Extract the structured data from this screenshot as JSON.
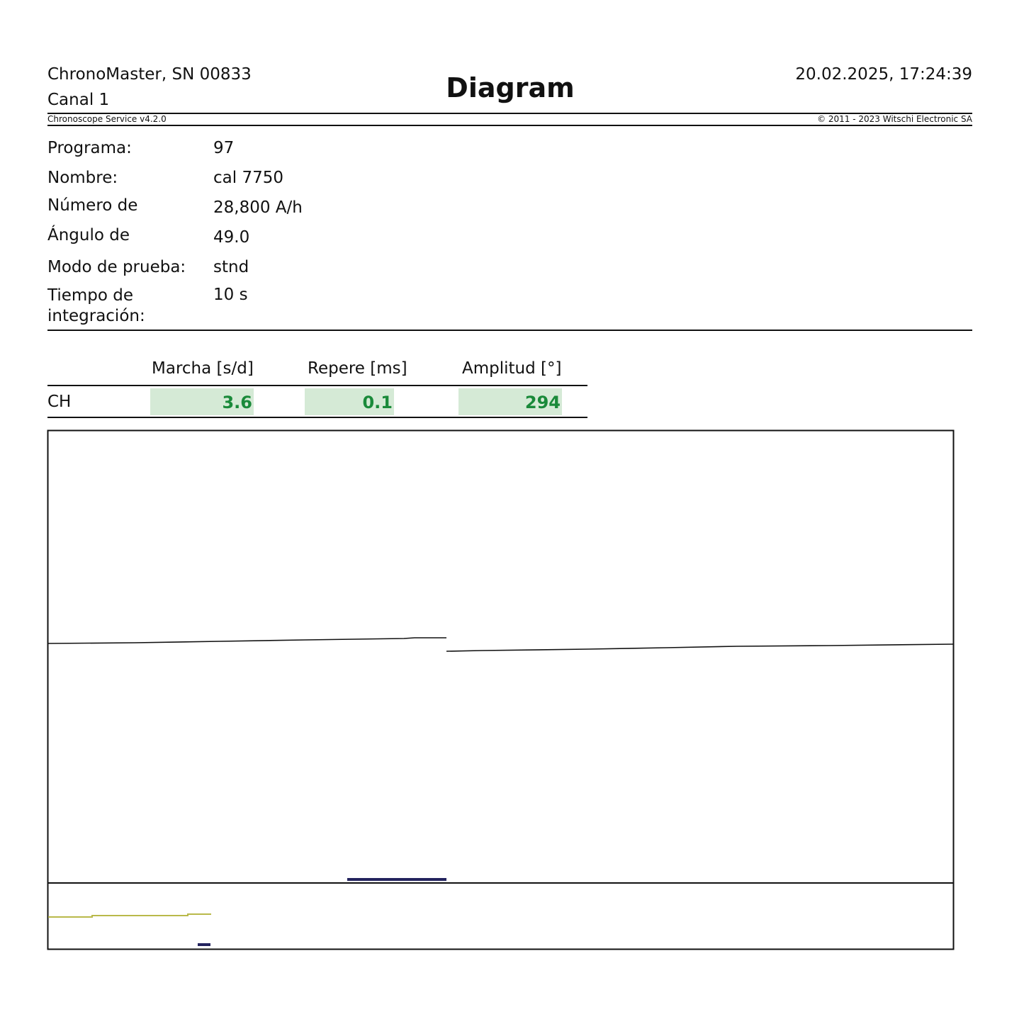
{
  "header": {
    "device": "ChronoMaster, SN 00833",
    "channel": "Canal 1",
    "title": "Diagram",
    "datetime": "20.02.2025, 17:24:39",
    "software": "Chronoscope Service  v4.2.0",
    "copyright": "© 2011 - 2023 Witschi Electronic SA"
  },
  "params": [
    {
      "label": "Programa:",
      "value": "97"
    },
    {
      "label": "Nombre:",
      "value": "cal 7750"
    },
    {
      "label": "Número de",
      "value": "28,800 A/h"
    },
    {
      "label": "Ángulo de",
      "value": "49.0"
    },
    {
      "label": "Modo de prueba:",
      "value": "stnd"
    },
    {
      "label": "Tiempo de integración:",
      "value": "10 s"
    }
  ],
  "results": {
    "headers": [
      "Marcha [s/d]",
      "Repere [ms]",
      "Amplitud [°]"
    ],
    "row_label": "CH",
    "values": [
      "3.6",
      "0.1",
      "294"
    ],
    "value_color": "#1a8a3a",
    "cell_bg": "#d5ead6"
  },
  "diagram": {
    "trace_color": "#111111",
    "amplitude_trace_color": "#c8c84a",
    "marker_color": "#23235e"
  }
}
